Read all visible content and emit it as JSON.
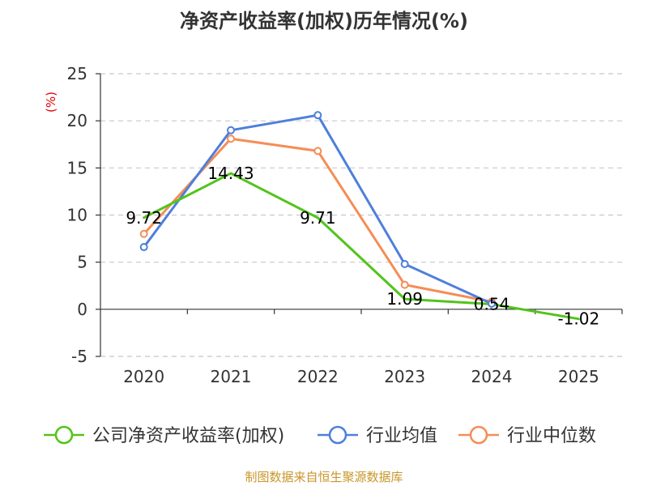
{
  "chart_data": {
    "type": "line",
    "title": "净资产收益率(加权)历年情况(%)",
    "ylabel": "(%)",
    "xlabel": "",
    "categories": [
      "2020",
      "2021",
      "2022",
      "2023",
      "2024",
      "2025"
    ],
    "ylim": [
      -5,
      25
    ],
    "yticks": [
      25,
      20,
      15,
      10,
      5,
      0,
      -5
    ],
    "grid": true,
    "legend": "bottom",
    "series": [
      {
        "name": "公司净资产收益率(加权)",
        "color": "#52c41a",
        "values": [
          9.72,
          14.43,
          9.71,
          1.09,
          0.54,
          -1.02
        ],
        "labels": [
          "9.72",
          "14.43",
          "9.71",
          "1.09",
          "0.54",
          "-1.02"
        ],
        "show_markers": false,
        "show_labels": true
      },
      {
        "name": "行业均值",
        "color": "#4f7fdc",
        "values": [
          6.6,
          19.0,
          20.6,
          4.8,
          0.6,
          null
        ],
        "show_markers": true,
        "show_labels": false
      },
      {
        "name": "行业中位数",
        "color": "#f58d56",
        "values": [
          8.0,
          18.1,
          16.8,
          2.6,
          0.8,
          null
        ],
        "show_markers": true,
        "show_labels": false
      }
    ]
  },
  "source": "制图数据来自恒生聚源数据库"
}
